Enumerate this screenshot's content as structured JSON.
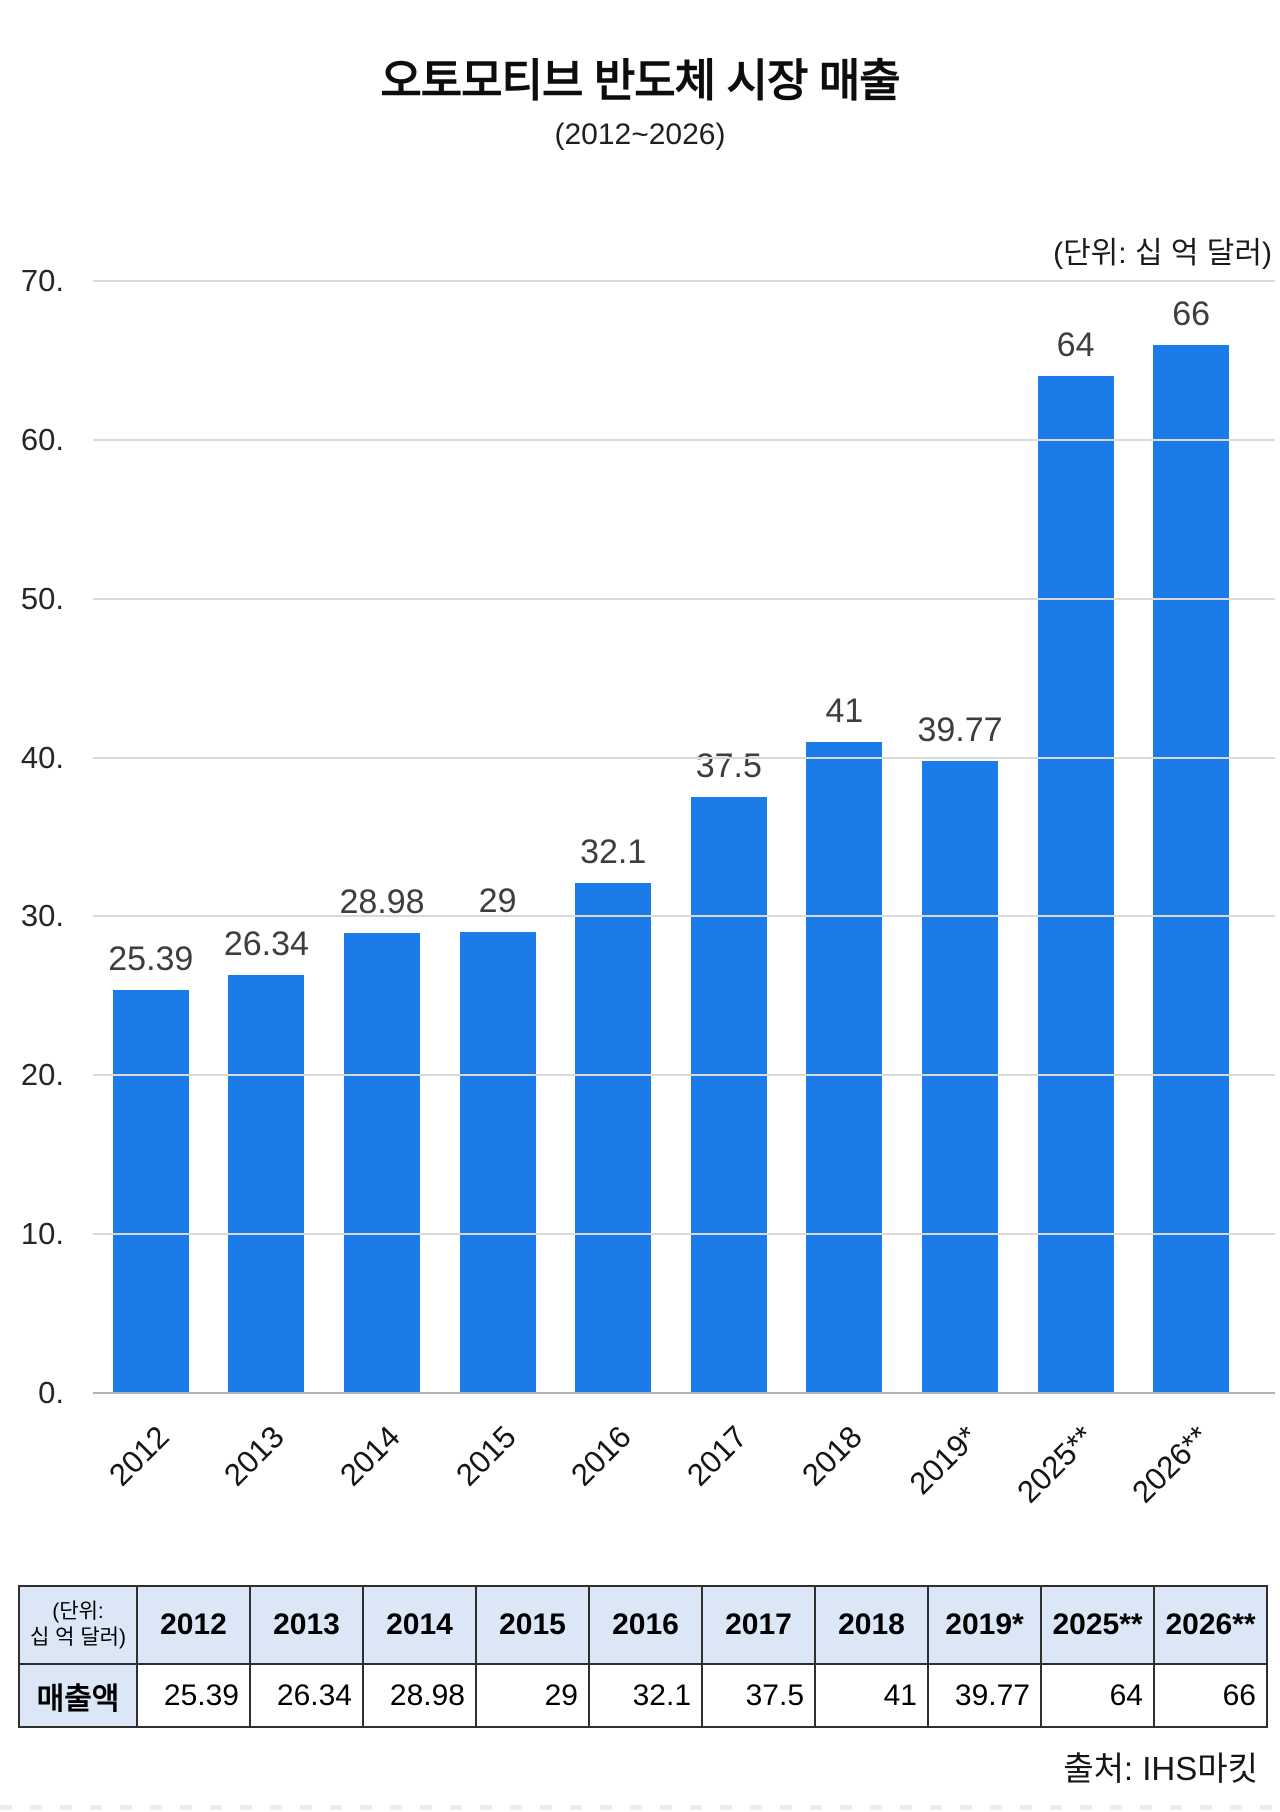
{
  "header": {
    "title": "오토모티브 반도체 시장 매출",
    "subtitle": "(2012~2026)",
    "unit_label": "(단위: 십 억 달러)"
  },
  "chart_data": {
    "type": "bar",
    "title": "오토모티브 반도체 시장 매출 (2012~2026)",
    "categories": [
      "2012",
      "2013",
      "2014",
      "2015",
      "2016",
      "2017",
      "2018",
      "2019*",
      "2025**",
      "2026**"
    ],
    "values": [
      25.39,
      26.34,
      28.98,
      29,
      32.1,
      37.5,
      41,
      39.77,
      64,
      66
    ],
    "value_labels": [
      "25.39",
      "26.34",
      "28.98",
      "29",
      "32.1",
      "37.5",
      "41",
      "39.77",
      "64",
      "66"
    ],
    "xlabel": "",
    "ylabel": "십 억 달러",
    "ylim": [
      0,
      70
    ],
    "ytick_labels": [
      "70.",
      "60.",
      "50.",
      "40.",
      "30.",
      "20.",
      "10.",
      "0."
    ],
    "grid": true,
    "legend": "none",
    "bar_color": "#1b7ce9",
    "value_label_color": "#3e3e3e"
  },
  "table": {
    "corner_label_line1": "(단위:",
    "corner_label_line2": "십 억 달러)",
    "columns": [
      "2012",
      "2013",
      "2014",
      "2015",
      "2016",
      "2017",
      "2018",
      "2019*",
      "2025**",
      "2026**"
    ],
    "row_label": "매출액",
    "values": [
      "25.39",
      "26.34",
      "28.98",
      "29",
      "32.1",
      "37.5",
      "41",
      "39.77",
      "64",
      "66"
    ]
  },
  "footer": {
    "source": "출처: IHS마킷"
  }
}
